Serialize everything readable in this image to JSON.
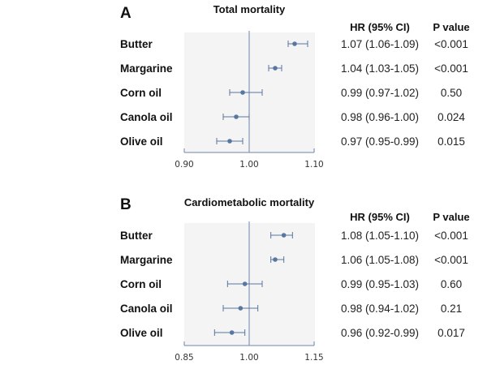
{
  "colors": {
    "marker": "#5876a0",
    "plot_background": "#f4f4f5",
    "axis": "#6d86ab"
  },
  "table_headers": {
    "hr": "HR (95% CI)",
    "p": "P value"
  },
  "chart_data": [
    {
      "type": "forest",
      "panel_letter": "A",
      "title": "Total mortality",
      "xlim": [
        0.9,
        1.1
      ],
      "xticks": [
        0.9,
        1.0,
        1.1
      ],
      "xtick_labels": [
        "0.90",
        "1.00",
        "1.10"
      ],
      "reference_line": 1.0,
      "grid": false,
      "rows": [
        {
          "label": "Butter",
          "hr": 1.07,
          "lo": 1.06,
          "hi": 1.09,
          "hr_text": "1.07 (1.06-1.09)",
          "p_text": "<0.001"
        },
        {
          "label": "Margarine",
          "hr": 1.04,
          "lo": 1.03,
          "hi": 1.05,
          "hr_text": "1.04 (1.03-1.05)",
          "p_text": "<0.001"
        },
        {
          "label": "Corn oil",
          "hr": 0.99,
          "lo": 0.97,
          "hi": 1.02,
          "hr_text": "0.99 (0.97-1.02)",
          "p_text": "0.50"
        },
        {
          "label": "Canola oil",
          "hr": 0.98,
          "lo": 0.96,
          "hi": 1.0,
          "hr_text": "0.98 (0.96-1.00)",
          "p_text": "0.024"
        },
        {
          "label": "Olive oil",
          "hr": 0.97,
          "lo": 0.95,
          "hi": 0.99,
          "hr_text": "0.97 (0.95-0.99)",
          "p_text": "0.015"
        }
      ]
    },
    {
      "type": "forest",
      "panel_letter": "B",
      "title": "Cardiometabolic mortality",
      "xlim": [
        0.85,
        1.15
      ],
      "xticks": [
        0.85,
        1.0,
        1.15
      ],
      "xtick_labels": [
        "0.85",
        "1.00",
        "1.15"
      ],
      "reference_line": 1.0,
      "grid": false,
      "rows": [
        {
          "label": "Butter",
          "hr": 1.08,
          "lo": 1.05,
          "hi": 1.1,
          "hr_text": "1.08 (1.05-1.10)",
          "p_text": "<0.001"
        },
        {
          "label": "Margarine",
          "hr": 1.06,
          "lo": 1.05,
          "hi": 1.08,
          "hr_text": "1.06 (1.05-1.08)",
          "p_text": "<0.001"
        },
        {
          "label": "Corn oil",
          "hr": 0.99,
          "lo": 0.95,
          "hi": 1.03,
          "hr_text": "0.99 (0.95-1.03)",
          "p_text": "0.60"
        },
        {
          "label": "Canola oil",
          "hr": 0.98,
          "lo": 0.94,
          "hi": 1.02,
          "hr_text": "0.98 (0.94-1.02)",
          "p_text": "0.21"
        },
        {
          "label": "Olive oil",
          "hr": 0.96,
          "lo": 0.92,
          "hi": 0.99,
          "hr_text": "0.96 (0.92-0.99)",
          "p_text": "0.017"
        }
      ]
    }
  ]
}
